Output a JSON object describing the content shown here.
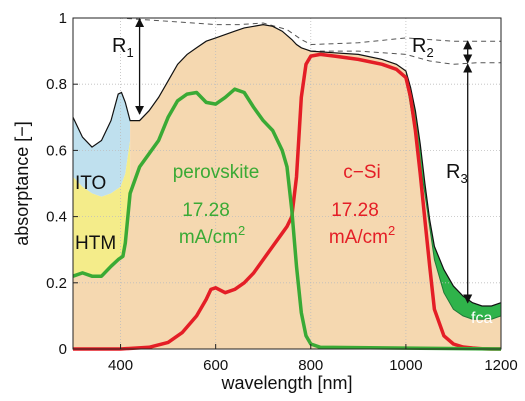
{
  "chart_data": {
    "type": "area",
    "xlabel": "wavelength [nm]",
    "ylabel": "absorptance [−]",
    "xlim": [
      300,
      1200
    ],
    "ylim": [
      0,
      1
    ],
    "x_ticks": [
      {
        "v": 400,
        "label": "400"
      },
      {
        "v": 600,
        "label": "600"
      },
      {
        "v": 800,
        "label": "800"
      },
      {
        "v": 1000,
        "label": "1000"
      },
      {
        "v": 1200,
        "label": "1200"
      }
    ],
    "y_ticks": [
      {
        "v": 0,
        "label": "0"
      },
      {
        "v": 0.2,
        "label": "0.2"
      },
      {
        "v": 0.4,
        "label": "0.4"
      },
      {
        "v": 0.6,
        "label": "0.6"
      },
      {
        "v": 0.8,
        "label": "0.8"
      },
      {
        "v": 1,
        "label": "1"
      }
    ],
    "grid": true,
    "colors": {
      "ito": "#bfe0ee",
      "htm": "#f4ec8a",
      "fill": "#f5d8b0",
      "perovskite": "#3aaa35",
      "csi": "#e41e26",
      "fca": "#2fb34a",
      "top": "#111111",
      "dashed": "#555555"
    },
    "series": [
      {
        "key": "total",
        "x": [
          300,
          320,
          340,
          360,
          380,
          395,
          402,
          410,
          420,
          440,
          460,
          480,
          500,
          520,
          540,
          560,
          580,
          600,
          620,
          640,
          660,
          680,
          700,
          720,
          740,
          760,
          770,
          780,
          790,
          800,
          850,
          900,
          950,
          980,
          1000,
          1010,
          1020,
          1030,
          1040,
          1050,
          1060,
          1080,
          1100,
          1120,
          1140,
          1160,
          1180,
          1200
        ],
        "y": [
          0.7,
          0.64,
          0.61,
          0.63,
          0.69,
          0.77,
          0.775,
          0.745,
          0.69,
          0.69,
          0.72,
          0.76,
          0.81,
          0.86,
          0.89,
          0.91,
          0.93,
          0.94,
          0.95,
          0.96,
          0.97,
          0.975,
          0.98,
          0.975,
          0.96,
          0.935,
          0.92,
          0.91,
          0.905,
          0.9,
          0.895,
          0.89,
          0.875,
          0.86,
          0.84,
          0.79,
          0.72,
          0.62,
          0.5,
          0.39,
          0.31,
          0.24,
          0.19,
          0.16,
          0.14,
          0.13,
          0.13,
          0.14
        ]
      },
      {
        "key": "ito_htm_boundary",
        "x": [
          300,
          320,
          340,
          360,
          380,
          400,
          410,
          420
        ],
        "y": [
          0.52,
          0.49,
          0.47,
          0.46,
          0.47,
          0.49,
          0.53,
          0.63
        ]
      },
      {
        "name": "perovskite",
        "x": [
          300,
          320,
          340,
          360,
          380,
          395,
          405,
          410,
          420,
          440,
          460,
          480,
          500,
          520,
          540,
          560,
          580,
          600,
          620,
          640,
          660,
          680,
          700,
          720,
          740,
          750,
          760,
          770,
          780,
          790,
          800,
          820,
          1200
        ],
        "y": [
          0.22,
          0.23,
          0.22,
          0.22,
          0.25,
          0.27,
          0.28,
          0.32,
          0.47,
          0.55,
          0.59,
          0.63,
          0.7,
          0.75,
          0.77,
          0.775,
          0.745,
          0.74,
          0.76,
          0.785,
          0.775,
          0.73,
          0.69,
          0.66,
          0.6,
          0.55,
          0.42,
          0.25,
          0.11,
          0.04,
          0.015,
          0.005,
          0
        ]
      },
      {
        "name": "c−Si",
        "x": [
          300,
          400,
          460,
          500,
          530,
          560,
          580,
          590,
          600,
          620,
          640,
          660,
          680,
          700,
          720,
          740,
          750,
          760,
          770,
          780,
          790,
          800,
          820,
          850,
          900,
          950,
          980,
          1000,
          1010,
          1020,
          1030,
          1040,
          1050,
          1060,
          1080,
          1100,
          1120,
          1140,
          1160,
          1180,
          1200
        ],
        "y": [
          0,
          0,
          0.005,
          0.02,
          0.05,
          0.1,
          0.15,
          0.18,
          0.185,
          0.17,
          0.18,
          0.2,
          0.23,
          0.27,
          0.31,
          0.35,
          0.37,
          0.4,
          0.52,
          0.76,
          0.86,
          0.885,
          0.89,
          0.885,
          0.875,
          0.86,
          0.845,
          0.82,
          0.76,
          0.66,
          0.53,
          0.39,
          0.25,
          0.12,
          0.04,
          0.015,
          0.006,
          0.003,
          0.001,
          0,
          0
        ]
      },
      {
        "key": "fca_top",
        "x": [
          1000,
          1040,
          1060,
          1080,
          1100,
          1120,
          1140,
          1160,
          1180,
          1200
        ],
        "y": [
          0.82,
          0.47,
          0.27,
          0.17,
          0.12,
          0.1,
          0.09,
          0.09,
          0.09,
          0.1
        ]
      }
    ],
    "dashed_lines": [
      {
        "x": [
          300,
          400,
          500,
          600,
          650,
          700,
          750,
          780,
          800,
          900,
          1000,
          1100,
          1200
        ],
        "y": [
          1,
          1,
          0.99,
          0.98,
          0.98,
          0.985,
          0.965,
          0.935,
          0.92,
          0.925,
          0.94,
          0.93,
          0.93
        ]
      },
      {
        "x": [
          800,
          900,
          1000,
          1050,
          1100,
          1150,
          1200
        ],
        "y": [
          0.9,
          0.9,
          0.89,
          0.87,
          0.86,
          0.865,
          0.865
        ]
      }
    ],
    "annotations": {
      "r1": {
        "label": "R",
        "sub": "1",
        "x": 440,
        "y_from": 1.0,
        "y_to": 0.71
      },
      "r2": {
        "label": "R",
        "sub": "2",
        "x": 1130,
        "y_from": 0.93,
        "y_to": 0.865
      },
      "r3": {
        "label": "R",
        "sub": "3",
        "x": 1130,
        "y_from": 0.86,
        "y_to": 0.14
      },
      "ito": "ITO",
      "htm": "HTM",
      "fca": "fca",
      "perovskite": {
        "name": "perovskite",
        "value": "17.28",
        "unit": "mA/cm",
        "sup": "2"
      },
      "csi": {
        "name": "c−Si",
        "value": "17.28",
        "unit": "mA/cm",
        "sup": "2"
      }
    }
  }
}
